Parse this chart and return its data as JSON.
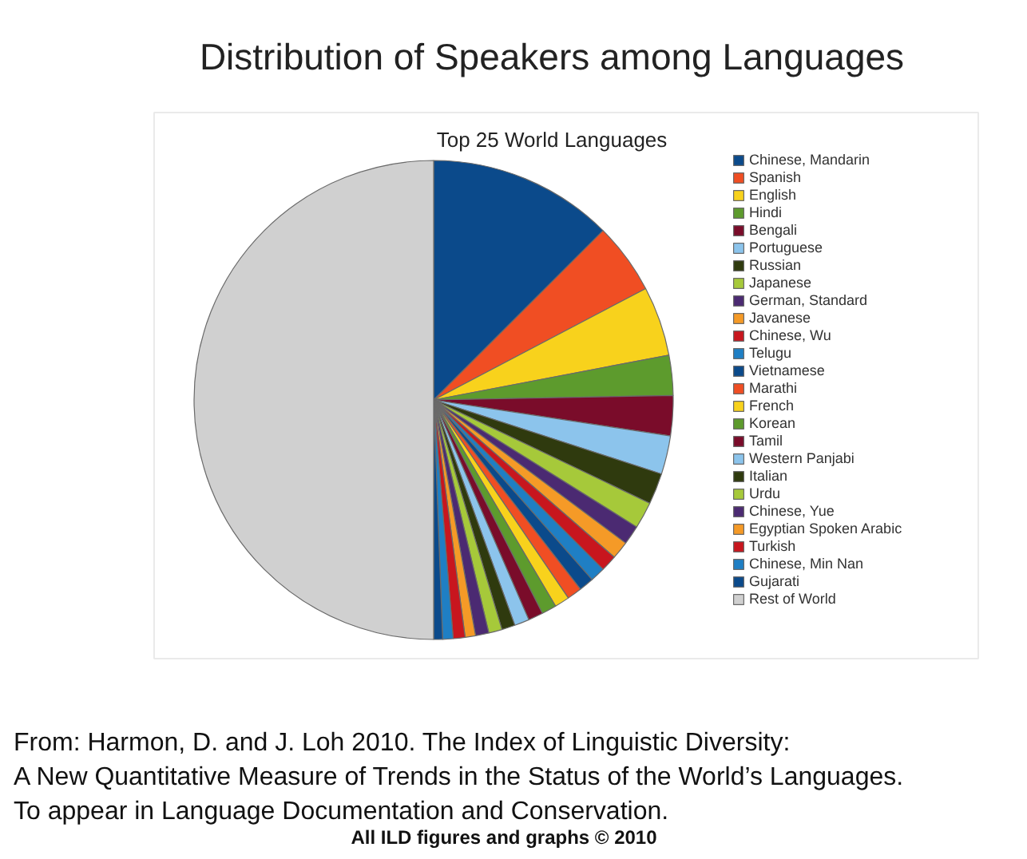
{
  "chart_data": {
    "type": "pie",
    "title": "Distribution of Speakers among Languages",
    "subtitle": "Top 25 World Languages",
    "categories": [
      "Chinese, Mandarin",
      "Spanish",
      "English",
      "Hindi",
      "Bengali",
      "Portuguese",
      "Russian",
      "Japanese",
      "German, Standard",
      "Javanese",
      "Chinese, Wu",
      "Telugu",
      "Vietnamese",
      "Marathi",
      "French",
      "Korean",
      "Tamil",
      "Western Panjabi",
      "Italian",
      "Urdu",
      "Chinese, Yue",
      "Egyptian Spoken Arabic",
      "Turkish",
      "Chinese, Min Nan",
      "Gujarati",
      "Rest of World"
    ],
    "values": [
      12.5,
      4.8,
      4.7,
      2.7,
      2.7,
      2.6,
      2.1,
      1.8,
      1.3,
      1.2,
      1.1,
      1.0,
      1.0,
      1.0,
      1.0,
      1.0,
      1.0,
      1.0,
      0.9,
      0.9,
      0.9,
      0.7,
      0.8,
      0.7,
      0.6,
      50.0
    ],
    "colors": [
      "#0b4a8b",
      "#f04e23",
      "#f8d21c",
      "#5d9b2d",
      "#7a0c2a",
      "#8cc4ec",
      "#2f3a0e",
      "#a6c93a",
      "#4b2a72",
      "#f59a27",
      "#c8161e",
      "#1f7fc4",
      "#0b4a8b",
      "#f04e23",
      "#f8d21c",
      "#5d9b2d",
      "#7a0c2a",
      "#8cc4ec",
      "#2f3a0e",
      "#a6c93a",
      "#4b2a72",
      "#f59a27",
      "#c8161e",
      "#1f7fc4",
      "#0b4a8b",
      "#d0d0d0"
    ],
    "legend": "top right",
    "annotations": [
      "From: Harmon, D. and J. Loh 2010. The Index of Linguistic Diversity:",
      "A New Quantitative Measure of Trends in the Status of the World’s Languages.",
      "To appear in Language Documentation and Conservation.",
      "All ILD figures and graphs © 2010"
    ]
  }
}
